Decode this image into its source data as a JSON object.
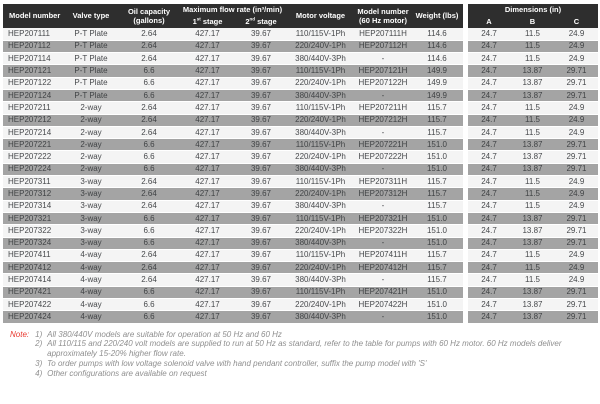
{
  "table": {
    "headers": {
      "model_number": "Model number",
      "valve_type": "Valve type",
      "oil_capacity_line1": "Oil capacity",
      "oil_capacity_line2": "(gallons)",
      "max_flow": "Maximum flow rate (in³/min)",
      "stage1_num": "1",
      "stage1_sup": "st",
      "stage1_rest": " stage",
      "stage2_num": "2",
      "stage2_sup": "nd",
      "stage2_rest": " stage",
      "motor_voltage": "Motor voltage",
      "model_60hz_line1": "Model number",
      "model_60hz_line2": "(60 Hz motor)",
      "weight": "Weight (lbs)"
    },
    "rows": [
      [
        "HEP207111",
        "P-T Plate",
        "2.64",
        "427.17",
        "39.67",
        "110/115V-1Ph",
        "HEP207111H",
        "114.6",
        "24.7",
        "11.5",
        "24.9"
      ],
      [
        "HEP207112",
        "P-T Plate",
        "2.64",
        "427.17",
        "39.67",
        "220/240V-1Ph",
        "HEP207112H",
        "114.6",
        "24.7",
        "11.5",
        "24.9"
      ],
      [
        "HEP207114",
        "P-T Plate",
        "2.64",
        "427.17",
        "39.67",
        "380/440V-3Ph",
        "-",
        "114.6",
        "24.7",
        "11.5",
        "24.9"
      ],
      [
        "HEP207121",
        "P-T Plate",
        "6.6",
        "427.17",
        "39.67",
        "110/115V-1Ph",
        "HEP207121H",
        "149.9",
        "24.7",
        "13.87",
        "29.71"
      ],
      [
        "HEP207122",
        "P-T Plate",
        "6.6",
        "427.17",
        "39.67",
        "220/240V-1Ph",
        "HEP207122H",
        "149.9",
        "24.7",
        "13.87",
        "29.71"
      ],
      [
        "HEP207124",
        "P-T Plate",
        "6.6",
        "427.17",
        "39.67",
        "380/440V-3Ph",
        "-",
        "149.9",
        "24.7",
        "13.87",
        "29.71"
      ],
      [
        "HEP207211",
        "2-way",
        "2.64",
        "427.17",
        "39.67",
        "110/115V-1Ph",
        "HEP207211H",
        "115.7",
        "24.7",
        "11.5",
        "24.9"
      ],
      [
        "HEP207212",
        "2-way",
        "2.64",
        "427.17",
        "39.67",
        "220/240V-1Ph",
        "HEP207212H",
        "115.7",
        "24.7",
        "11.5",
        "24.9"
      ],
      [
        "HEP207214",
        "2-way",
        "2.64",
        "427.17",
        "39.67",
        "380/440V-3Ph",
        "-",
        "115.7",
        "24.7",
        "11.5",
        "24.9"
      ],
      [
        "HEP207221",
        "2-way",
        "6.6",
        "427.17",
        "39.67",
        "110/115V-1Ph",
        "HEP207221H",
        "151.0",
        "24.7",
        "13.87",
        "29.71"
      ],
      [
        "HEP207222",
        "2-way",
        "6.6",
        "427.17",
        "39.67",
        "220/240V-1Ph",
        "HEP207222H",
        "151.0",
        "24.7",
        "13.87",
        "29.71"
      ],
      [
        "HEP207224",
        "2-way",
        "6.6",
        "427.17",
        "39.67",
        "380/440V-3Ph",
        "-",
        "151.0",
        "24.7",
        "13.87",
        "29.71"
      ],
      [
        "HEP207311",
        "3-way",
        "2.64",
        "427.17",
        "39.67",
        "110/115V-1Ph",
        "HEP207311H",
        "115.7",
        "24.7",
        "11.5",
        "24.9"
      ],
      [
        "HEP207312",
        "3-way",
        "2.64",
        "427.17",
        "39.67",
        "220/240V-1Ph",
        "HEP207312H",
        "115.7",
        "24.7",
        "11.5",
        "24.9"
      ],
      [
        "HEP207314",
        "3-way",
        "2.64",
        "427.17",
        "39.67",
        "380/440V-3Ph",
        "-",
        "115.7",
        "24.7",
        "11.5",
        "24.9"
      ],
      [
        "HEP207321",
        "3-way",
        "6.6",
        "427.17",
        "39.67",
        "110/115V-1Ph",
        "HEP207321H",
        "151.0",
        "24.7",
        "13.87",
        "29.71"
      ],
      [
        "HEP207322",
        "3-way",
        "6.6",
        "427.17",
        "39.67",
        "220/240V-1Ph",
        "HEP207322H",
        "151.0",
        "24.7",
        "13.87",
        "29.71"
      ],
      [
        "HEP207324",
        "3-way",
        "6.6",
        "427.17",
        "39.67",
        "380/440V-3Ph",
        "-",
        "151.0",
        "24.7",
        "13.87",
        "29.71"
      ],
      [
        "HEP207411",
        "4-way",
        "2.64",
        "427.17",
        "39.67",
        "110/115V-1Ph",
        "HEP207411H",
        "115.7",
        "24.7",
        "11.5",
        "24.9"
      ],
      [
        "HEP207412",
        "4-way",
        "2.64",
        "427.17",
        "39.67",
        "220/240V-1Ph",
        "HEP207412H",
        "115.7",
        "24.7",
        "11.5",
        "24.9"
      ],
      [
        "HEP207414",
        "4-way",
        "2.64",
        "427.17",
        "39.67",
        "380/440V-3Ph",
        "-",
        "115.7",
        "24.7",
        "11.5",
        "24.9"
      ],
      [
        "HEP207421",
        "4-way",
        "6.6",
        "427.17",
        "39.67",
        "110/115V-1Ph",
        "HEP207421H",
        "151.0",
        "24.7",
        "13.87",
        "29.71"
      ],
      [
        "HEP207422",
        "4-way",
        "6.6",
        "427.17",
        "39.67",
        "220/240V-1Ph",
        "HEP207422H",
        "151.0",
        "24.7",
        "13.87",
        "29.71"
      ],
      [
        "HEP207424",
        "4-way",
        "6.6",
        "427.17",
        "39.67",
        "380/440V-3Ph",
        "-",
        "151.0",
        "24.7",
        "13.87",
        "29.71"
      ]
    ]
  },
  "dimensions": {
    "title": "Dimensions (in)",
    "columns": [
      "A",
      "B",
      "C"
    ]
  },
  "notes": {
    "label": "Note:",
    "items": [
      {
        "num": "1)",
        "text": "All 380/440V models are suitable for operation at 50 Hz and 60 Hz"
      },
      {
        "num": "2)",
        "text": "All 110/115 and 220/240 volt models are supplied to run at 50 Hz as standard, refer to the table for pumps with 60 Hz motor. 60 Hz models deliver approximately 15-20% higher flow rate."
      },
      {
        "num": "3)",
        "text": "To order pumps with low voltage solenoid valve with hand pendant controller, suffix the pump model with 'S'"
      },
      {
        "num": "4)",
        "text": "Other configurations are available on request"
      }
    ]
  },
  "colors": {
    "header_bg": "#2e2e2e",
    "row_light": "#f4f4f4",
    "row_dark": "#a4a4a4",
    "note_red": "#e8392f"
  }
}
